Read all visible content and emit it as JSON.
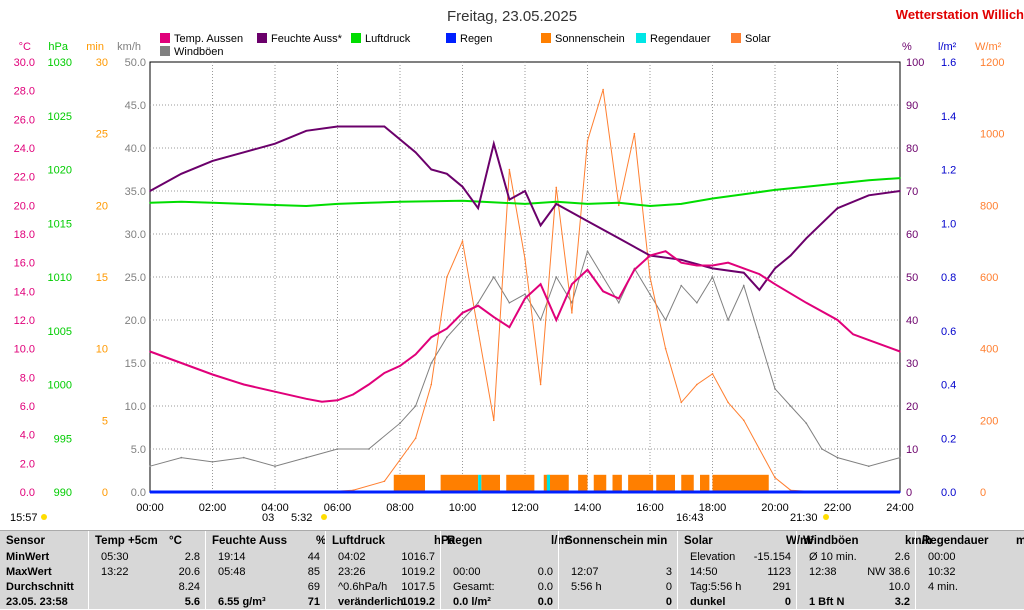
{
  "header": {
    "date_title": "Freitag, 23.05.2025",
    "station_name": "Wetterstation Willich",
    "station_color": "#e00000"
  },
  "legend": [
    {
      "label": "Temp. Aussen",
      "color": "#e0007a"
    },
    {
      "label": "Feuchte Auss*",
      "color": "#6b006b"
    },
    {
      "label": "Luftdruck",
      "color": "#00dd00"
    },
    {
      "label": "Regen",
      "color": "#0020ff"
    },
    {
      "label": "Sonnenschein",
      "color": "#ff7f00"
    },
    {
      "label": "Regendauer",
      "color": "#00e6e6"
    },
    {
      "label": "Solar",
      "color": "#ff7f30"
    },
    {
      "label": "Windböen",
      "color": "#808080"
    }
  ],
  "axes": {
    "temp": {
      "unit": "°C",
      "color": "#e0007a",
      "ticks": [
        "30.0",
        "28.0",
        "26.0",
        "24.0",
        "22.0",
        "20.0",
        "18.0",
        "16.0",
        "14.0",
        "12.0",
        "10.0",
        "8.0",
        "6.0",
        "4.0",
        "2.0",
        "0.0"
      ],
      "range": [
        0,
        30
      ]
    },
    "pressure": {
      "unit": "hPa",
      "color": "#00cc00",
      "ticks": [
        "1030",
        "1025",
        "1020",
        "1015",
        "1010",
        "1005",
        "1000",
        "995",
        "990"
      ],
      "range": [
        990,
        1030
      ]
    },
    "minutes": {
      "unit": "min",
      "color": "#ff9900",
      "ticks": [
        "30",
        "25",
        "20",
        "15",
        "10",
        "5",
        "0"
      ],
      "range": [
        0,
        30
      ]
    },
    "wind": {
      "unit": "km/h",
      "color": "#808080",
      "ticks": [
        "50.0",
        "45.0",
        "40.0",
        "35.0",
        "30.0",
        "25.0",
        "20.0",
        "15.0",
        "10.0",
        "5.0",
        "0.0"
      ],
      "range": [
        0,
        50
      ]
    },
    "humidity": {
      "unit": "%",
      "color": "#6b006b",
      "ticks": [
        "100",
        "90",
        "80",
        "70",
        "60",
        "50",
        "40",
        "30",
        "20",
        "10",
        "0"
      ],
      "range": [
        0,
        100
      ]
    },
    "rain": {
      "unit": "l/m²",
      "color": "#0000cc",
      "ticks": [
        "1.6",
        "1.4",
        "1.2",
        "1.0",
        "0.8",
        "0.6",
        "0.4",
        "0.2",
        "0.0"
      ],
      "range": [
        0,
        1.6
      ]
    },
    "solar": {
      "unit": "W/m²",
      "color": "#ff7f30",
      "ticks": [
        "1200",
        "1000",
        "800",
        "600",
        "400",
        "200",
        "0"
      ],
      "range": [
        0,
        1200
      ]
    },
    "time": {
      "ticks": [
        "00:00",
        "02:00",
        "04:00",
        "06:00",
        "08:00",
        "10:00",
        "12:00",
        "14:00",
        "16:00",
        "18:00",
        "20:00",
        "22:00",
        "24:00"
      ]
    }
  },
  "markers": {
    "left_time": "15:57",
    "sunrise_label": "5:32",
    "moon_label": "03",
    "sunset_label": "21:30",
    "solar_noon_label": "16:43"
  },
  "chart_data": {
    "type": "line",
    "x_unit": "hours",
    "xlim": [
      0,
      24
    ],
    "series": [
      {
        "name": "Temp. Aussen",
        "unit": "°C",
        "points": [
          [
            0,
            9.8
          ],
          [
            1,
            9.0
          ],
          [
            2,
            8.2
          ],
          [
            3,
            7.5
          ],
          [
            4,
            7.0
          ],
          [
            5,
            6.5
          ],
          [
            5.5,
            6.3
          ],
          [
            6,
            6.4
          ],
          [
            6.5,
            6.8
          ],
          [
            7,
            7.5
          ],
          [
            7.5,
            8.3
          ],
          [
            8,
            8.8
          ],
          [
            8.5,
            9.6
          ],
          [
            9,
            10.8
          ],
          [
            9.5,
            11.4
          ],
          [
            10,
            12.5
          ],
          [
            10.5,
            13.0
          ],
          [
            11,
            12.2
          ],
          [
            11.5,
            11.5
          ],
          [
            12,
            13.5
          ],
          [
            12.5,
            14.5
          ],
          [
            13,
            12.0
          ],
          [
            13.5,
            14.5
          ],
          [
            14,
            15.5
          ],
          [
            14.5,
            14.0
          ],
          [
            15,
            13.5
          ],
          [
            15.5,
            15.5
          ],
          [
            16,
            16.5
          ],
          [
            16.5,
            16.8
          ],
          [
            17,
            16.0
          ],
          [
            17.5,
            15.8
          ],
          [
            18,
            15.8
          ],
          [
            18.5,
            16.0
          ],
          [
            19,
            15.6
          ],
          [
            19.5,
            15.2
          ],
          [
            20,
            14.5
          ],
          [
            21,
            13.2
          ],
          [
            22,
            12.0
          ],
          [
            22.5,
            11.0
          ],
          [
            23,
            10.6
          ],
          [
            24,
            9.8
          ]
        ]
      },
      {
        "name": "Feuchte Auss*",
        "unit": "%",
        "points": [
          [
            0,
            70
          ],
          [
            1,
            74
          ],
          [
            2,
            77
          ],
          [
            3,
            79
          ],
          [
            4,
            81
          ],
          [
            5,
            84
          ],
          [
            6,
            85
          ],
          [
            7.5,
            85
          ],
          [
            8.5,
            79
          ],
          [
            9,
            75
          ],
          [
            9.5,
            74
          ],
          [
            10,
            71
          ],
          [
            10.5,
            66
          ],
          [
            11,
            81
          ],
          [
            11.5,
            68
          ],
          [
            12,
            70
          ],
          [
            12.5,
            62
          ],
          [
            13,
            67
          ],
          [
            13.5,
            65
          ],
          [
            14,
            63
          ],
          [
            15,
            59
          ],
          [
            16,
            55
          ],
          [
            17,
            54
          ],
          [
            18,
            52
          ],
          [
            19,
            51
          ],
          [
            19.5,
            47
          ],
          [
            20,
            52
          ],
          [
            20.5,
            55
          ],
          [
            21,
            59
          ],
          [
            22,
            66
          ],
          [
            23,
            69
          ],
          [
            24,
            70
          ]
        ]
      },
      {
        "name": "Luftdruck",
        "unit": "hPa",
        "points": [
          [
            0,
            1016.9
          ],
          [
            1,
            1017.0
          ],
          [
            2,
            1016.9
          ],
          [
            3,
            1016.8
          ],
          [
            4,
            1016.7
          ],
          [
            5,
            1016.6
          ],
          [
            6,
            1016.8
          ],
          [
            7,
            1016.9
          ],
          [
            8,
            1017.0
          ],
          [
            10,
            1017.1
          ],
          [
            12,
            1016.8
          ],
          [
            13,
            1017.0
          ],
          [
            14,
            1016.8
          ],
          [
            15,
            1016.9
          ],
          [
            16,
            1016.6
          ],
          [
            17,
            1016.8
          ],
          [
            18,
            1017.3
          ],
          [
            19,
            1017.7
          ],
          [
            20,
            1018.1
          ],
          [
            21,
            1018.4
          ],
          [
            22,
            1018.7
          ],
          [
            23,
            1019.0
          ],
          [
            24,
            1019.2
          ]
        ]
      },
      {
        "name": "Regen",
        "unit": "l/m²",
        "points": [
          [
            0,
            0
          ],
          [
            24,
            0
          ]
        ]
      },
      {
        "name": "Solar",
        "unit": "W/m²",
        "points": [
          [
            5.5,
            0
          ],
          [
            6.5,
            5
          ],
          [
            7.5,
            30
          ],
          [
            8.5,
            150
          ],
          [
            9,
            300
          ],
          [
            9.5,
            600
          ],
          [
            10,
            700
          ],
          [
            10.5,
            450
          ],
          [
            11,
            200
          ],
          [
            11.5,
            900
          ],
          [
            12,
            650
          ],
          [
            12.5,
            300
          ],
          [
            13,
            850
          ],
          [
            13.5,
            500
          ],
          [
            14,
            980
          ],
          [
            14.5,
            1123
          ],
          [
            15,
            800
          ],
          [
            15.5,
            1000
          ],
          [
            16,
            600
          ],
          [
            16.5,
            400
          ],
          [
            17,
            250
          ],
          [
            17.5,
            300
          ],
          [
            18,
            330
          ],
          [
            18.5,
            250
          ],
          [
            19,
            200
          ],
          [
            19.5,
            120
          ],
          [
            20,
            40
          ],
          [
            20.5,
            5
          ],
          [
            21.5,
            0
          ]
        ]
      },
      {
        "name": "Windböen",
        "unit": "km/h",
        "points": [
          [
            0,
            3
          ],
          [
            1,
            4
          ],
          [
            2,
            3.5
          ],
          [
            3,
            4
          ],
          [
            4,
            3
          ],
          [
            5,
            4
          ],
          [
            6,
            5
          ],
          [
            7,
            5
          ],
          [
            8,
            8
          ],
          [
            8.5,
            10
          ],
          [
            9,
            15
          ],
          [
            9.5,
            18
          ],
          [
            10,
            20
          ],
          [
            10.5,
            22
          ],
          [
            11,
            25
          ],
          [
            11.5,
            22
          ],
          [
            12,
            23
          ],
          [
            12.5,
            20
          ],
          [
            13,
            25
          ],
          [
            13.5,
            22
          ],
          [
            14,
            28
          ],
          [
            14.5,
            25
          ],
          [
            15,
            22
          ],
          [
            15.5,
            26
          ],
          [
            16,
            23
          ],
          [
            16.5,
            20
          ],
          [
            17,
            24
          ],
          [
            17.5,
            22
          ],
          [
            18,
            25
          ],
          [
            18.5,
            20
          ],
          [
            19,
            24
          ],
          [
            19.5,
            18
          ],
          [
            20,
            12
          ],
          [
            20.5,
            10
          ],
          [
            21,
            8
          ],
          [
            21.5,
            5
          ],
          [
            22,
            4
          ],
          [
            23,
            3
          ],
          [
            24,
            4
          ]
        ]
      }
    ],
    "sunshine_blocks": [
      [
        7.8,
        8.8
      ],
      [
        9.3,
        10.5
      ],
      [
        10.6,
        11.2
      ],
      [
        11.4,
        12.3
      ],
      [
        12.6,
        13.4
      ],
      [
        13.7,
        14.0
      ],
      [
        14.2,
        14.6
      ],
      [
        14.8,
        15.1
      ],
      [
        15.3,
        16.1
      ],
      [
        16.2,
        16.8
      ],
      [
        17.0,
        17.4
      ],
      [
        17.6,
        17.9
      ],
      [
        18.0,
        19.8
      ]
    ],
    "regendauer_blocks": [
      [
        10.5,
        10.6
      ],
      [
        12.7,
        12.8
      ]
    ]
  },
  "table": [
    {
      "header": [
        {
          "text": "Sensor"
        }
      ],
      "rows": [
        [
          "MinWert"
        ],
        [
          "MaxWert"
        ],
        [
          "Durchschnitt"
        ],
        [
          "23.05. 23:58"
        ]
      ]
    },
    {
      "header": [
        {
          "text": "Temp +5cm"
        },
        {
          "text": "°C"
        }
      ],
      "rows": [
        [
          "05:30",
          "2.8"
        ],
        [
          "13:22",
          "20.6"
        ],
        [
          "",
          "8.24"
        ],
        [
          "",
          "5.6"
        ]
      ]
    },
    {
      "header": [
        {
          "text": "Feuchte Auss"
        },
        {
          "text": "%"
        }
      ],
      "rows": [
        [
          "19:14",
          "44"
        ],
        [
          "05:48",
          "85"
        ],
        [
          "",
          "69"
        ],
        [
          "6.55 g/m³",
          "71"
        ]
      ]
    },
    {
      "header": [
        {
          "text": "Luftdruck"
        },
        {
          "text": "hPa"
        }
      ],
      "rows": [
        [
          "04:02",
          "1016.7"
        ],
        [
          "23:26",
          "1019.2"
        ],
        [
          "^0.6hPa/h",
          "1017.5"
        ],
        [
          "veränderlich",
          "1019.2"
        ]
      ]
    },
    {
      "header": [
        {
          "text": "Regen"
        },
        {
          "text": "l/m²"
        }
      ],
      "rows": [
        [
          "",
          ""
        ],
        [
          "00:00",
          "0.0"
        ],
        [
          "Gesamt:",
          "0.0"
        ],
        [
          "0.0 l/m²",
          "0.0"
        ]
      ]
    },
    {
      "header": [
        {
          "text": "Sonnenschein min"
        },
        {
          "text": ""
        }
      ],
      "rows": [
        [
          "",
          ""
        ],
        [
          "12:07",
          "3"
        ],
        [
          "5:56 h",
          "0"
        ],
        [
          "",
          "0"
        ]
      ]
    },
    {
      "header": [
        {
          "text": "Solar"
        },
        {
          "text": "W/m²"
        }
      ],
      "rows": [
        [
          "Elevation",
          "-15.154"
        ],
        [
          "14:50",
          "1123"
        ],
        [
          "Tag:5:56 h",
          "291"
        ],
        [
          "dunkel",
          "0"
        ]
      ]
    },
    {
      "header": [
        {
          "text": "Windböen"
        },
        {
          "text": "km/h"
        }
      ],
      "rows": [
        [
          "Ø 10 min.",
          "2.6"
        ],
        [
          "12:38",
          "NW 38.6"
        ],
        [
          "",
          "10.0"
        ],
        [
          "1 Bft N",
          "3.2"
        ]
      ]
    },
    {
      "header": [
        {
          "text": "Regendauer"
        },
        {
          "text": "mi"
        }
      ],
      "rows": [
        [
          "00:00",
          ""
        ],
        [
          "10:32",
          ""
        ],
        [
          "4 min.",
          ""
        ],
        [
          "",
          ""
        ]
      ]
    }
  ]
}
